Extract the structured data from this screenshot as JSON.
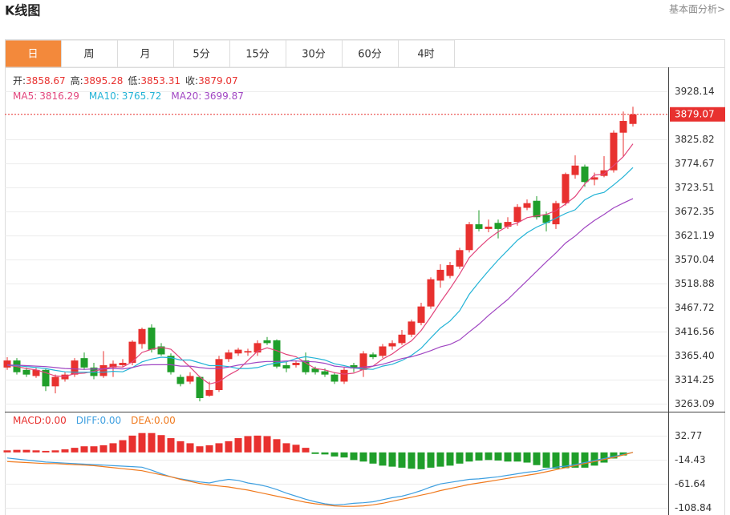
{
  "header": {
    "title": "K线图",
    "link": "基本面分析>"
  },
  "tabs": [
    "日",
    "周",
    "月",
    "5分",
    "15分",
    "30分",
    "60分",
    "4时"
  ],
  "active_tab": 0,
  "chart_data": [
    {
      "type": "candlestick",
      "ohlc_labels": [
        "开:",
        "高:",
        "低:",
        "收:"
      ],
      "up_color": "#e8312f",
      "down_color": "#1f9e2a",
      "open": [
        3340,
        3355,
        3335,
        3322,
        3335,
        3300,
        3315,
        3325,
        3360,
        3340,
        3322,
        3340,
        3345,
        3350,
        3390,
        3425,
        3385,
        3365,
        3320,
        3310,
        3320,
        3280,
        3292,
        3358,
        3370,
        3372,
        3372,
        3398,
        3398,
        3345,
        3345,
        3355,
        3338,
        3332,
        3325,
        3310,
        3345,
        3335,
        3368,
        3365,
        3385,
        3392,
        3410,
        3435,
        3470,
        3525,
        3535,
        3555,
        3590,
        3645,
        3635,
        3648,
        3640,
        3650,
        3680,
        3695,
        3665,
        3645,
        3690,
        3750,
        3768,
        3740,
        3748,
        3760,
        3840,
        3858.67
      ],
      "high": [
        3362,
        3360,
        3340,
        3340,
        3338,
        3325,
        3330,
        3360,
        3372,
        3350,
        3375,
        3355,
        3358,
        3398,
        3425,
        3432,
        3392,
        3370,
        3325,
        3330,
        3322,
        3310,
        3365,
        3378,
        3382,
        3380,
        3398,
        3405,
        3400,
        3352,
        3355,
        3372,
        3342,
        3338,
        3330,
        3340,
        3350,
        3375,
        3372,
        3390,
        3398,
        3420,
        3442,
        3478,
        3532,
        3560,
        3565,
        3595,
        3650,
        3675,
        3655,
        3655,
        3660,
        3688,
        3698,
        3705,
        3672,
        3695,
        3755,
        3792,
        3772,
        3755,
        3790,
        3845,
        3885,
        3895.28
      ],
      "low": [
        3335,
        3325,
        3320,
        3318,
        3290,
        3285,
        3310,
        3320,
        3335,
        3315,
        3318,
        3320,
        3340,
        3345,
        3380,
        3372,
        3365,
        3325,
        3300,
        3305,
        3268,
        3278,
        3288,
        3352,
        3365,
        3365,
        3365,
        3388,
        3338,
        3330,
        3340,
        3325,
        3325,
        3320,
        3305,
        3305,
        3330,
        3320,
        3358,
        3360,
        3378,
        3388,
        3405,
        3430,
        3465,
        3510,
        3530,
        3550,
        3585,
        3630,
        3628,
        3615,
        3635,
        3642,
        3675,
        3655,
        3630,
        3635,
        3685,
        3742,
        3725,
        3728,
        3745,
        3755,
        3790,
        3853.31
      ],
      "close": [
        3355,
        3330,
        3325,
        3335,
        3300,
        3320,
        3325,
        3355,
        3340,
        3322,
        3345,
        3348,
        3350,
        3395,
        3422,
        3378,
        3368,
        3330,
        3305,
        3322,
        3275,
        3292,
        3358,
        3372,
        3378,
        3375,
        3392,
        3392,
        3342,
        3338,
        3350,
        3330,
        3330,
        3325,
        3310,
        3335,
        3338,
        3370,
        3362,
        3385,
        3392,
        3410,
        3438,
        3470,
        3528,
        3548,
        3558,
        3590,
        3645,
        3635,
        3640,
        3635,
        3650,
        3682,
        3690,
        3660,
        3648,
        3690,
        3752,
        3770,
        3735,
        3745,
        3760,
        3840,
        3865,
        3879.07
      ],
      "series": [
        {
          "name": "MA5:",
          "color": "#e2457c",
          "values": [
            3345,
            3342,
            3338,
            3335,
            3329,
            3322,
            3321,
            3327,
            3328,
            3332,
            3337,
            3342,
            3341,
            3352,
            3372,
            3379,
            3383,
            3379,
            3360,
            3341,
            3320,
            3305,
            3310,
            3324,
            3335,
            3355,
            3375,
            3382,
            3376,
            3368,
            3363,
            3350,
            3338,
            3335,
            3329,
            3326,
            3328,
            3336,
            3343,
            3358,
            3369,
            3384,
            3397,
            3419,
            3448,
            3479,
            3508,
            3539,
            3574,
            3595,
            3614,
            3629,
            3641,
            3648,
            3659,
            3663,
            3666,
            3674,
            3688,
            3704,
            3731,
            3750,
            3752,
            3770,
            3789,
            3816.29
          ]
        },
        {
          "name": "MA10:",
          "color": "#22b3d6",
          "values": [
            3345,
            3344,
            3342,
            3340,
            3338,
            3334,
            3331,
            3330,
            3330,
            3330,
            3330,
            3332,
            3331,
            3340,
            3352,
            3358,
            3362,
            3361,
            3356,
            3356,
            3350,
            3344,
            3344,
            3342,
            3338,
            3338,
            3340,
            3346,
            3350,
            3352,
            3359,
            3363,
            3360,
            3356,
            3348,
            3344,
            3339,
            3337,
            3336,
            3343,
            3347,
            3355,
            3366,
            3381,
            3403,
            3424,
            3439,
            3461,
            3496,
            3522,
            3546,
            3569,
            3590,
            3611,
            3627,
            3639,
            3648,
            3658,
            3668,
            3676,
            3697,
            3708,
            3713,
            3729,
            3746,
            3765.72
          ]
        },
        {
          "name": "MA20:",
          "color": "#a046c2",
          "values": [
            3345,
            3345,
            3344,
            3343,
            3342,
            3340,
            3338,
            3337,
            3336,
            3337,
            3337,
            3338,
            3337,
            3340,
            3345,
            3346,
            3346,
            3346,
            3343,
            3343,
            3340,
            3338,
            3338,
            3341,
            3345,
            3348,
            3351,
            3353,
            3353,
            3354,
            3354,
            3353,
            3352,
            3349,
            3343,
            3341,
            3339,
            3341,
            3343,
            3347,
            3353,
            3359,
            3363,
            3369,
            3376,
            3384,
            3389,
            3399,
            3416,
            3432,
            3451,
            3468,
            3485,
            3505,
            3525,
            3545,
            3565,
            3584,
            3605,
            3620,
            3638,
            3653,
            3666,
            3680,
            3690,
            3699.87
          ]
        }
      ],
      "ylim": [
        3246.0,
        3979.3
      ],
      "yticks": [
        3263.09,
        3314.25,
        {
          "value": 3365.4,
          "label": "3365.40"
        },
        3416.56,
        3467.72,
        3518.88,
        3570.04,
        3621.19,
        3672.35,
        3723.51,
        3774.67,
        3825.82,
        3928.14
      ],
      "grid": true
    },
    {
      "type": "macd",
      "up_color": "#e8312f",
      "down_color": "#1f9e2a",
      "histogram": {
        "name": "MACD:",
        "color": "#e8312f",
        "value_label": "0.00",
        "values": [
          4,
          5,
          5,
          4,
          3,
          4,
          6,
          9,
          12,
          12,
          14,
          18,
          24,
          33,
          38,
          38,
          34,
          28,
          22,
          18,
          12,
          14,
          18,
          22,
          28,
          32,
          33,
          32,
          26,
          18,
          15,
          9,
          -3,
          -4,
          -8,
          -10,
          -15,
          -18,
          -22,
          -26,
          -28,
          -30,
          -32,
          -33,
          -30,
          -28,
          -26,
          -22,
          -18,
          -16,
          -15,
          -16,
          -18,
          -18,
          -20,
          -25,
          -30,
          -32,
          -31,
          -30,
          -30,
          -26,
          -20,
          -12,
          -6,
          0
        ]
      },
      "series": [
        {
          "name": "DIFF:",
          "color": "#3e9fe0",
          "value_label": "0.00",
          "values": [
            -11,
            -13,
            -15,
            -17,
            -19,
            -20,
            -21,
            -22,
            -23,
            -24,
            -25,
            -26,
            -27,
            -28,
            -29,
            -35,
            -42,
            -48,
            -52,
            -55,
            -58,
            -60,
            -56,
            -53,
            -55,
            -60,
            -63,
            -67,
            -73,
            -80,
            -86,
            -92,
            -97,
            -101,
            -103,
            -102,
            -100,
            -99,
            -97,
            -93,
            -89,
            -86,
            -81,
            -75,
            -68,
            -62,
            -59,
            -56,
            -53,
            -52,
            -50,
            -48,
            -45,
            -42,
            -39,
            -37,
            -33,
            -29,
            -27,
            -24,
            -20,
            -16,
            -12,
            -8,
            -4,
            0
          ]
        },
        {
          "name": "DEA:",
          "color": "#f07a1e",
          "value_label": "0.00",
          "values": [
            -18,
            -19,
            -20,
            -21,
            -22,
            -22,
            -23,
            -24,
            -25,
            -26,
            -28,
            -30,
            -32,
            -34,
            -36,
            -40,
            -44,
            -48,
            -53,
            -57,
            -61,
            -64,
            -66,
            -68,
            -71,
            -74,
            -78,
            -82,
            -86,
            -90,
            -94,
            -98,
            -101,
            -103,
            -105,
            -106,
            -106,
            -105,
            -103,
            -100,
            -96,
            -92,
            -88,
            -84,
            -80,
            -75,
            -71,
            -67,
            -63,
            -60,
            -57,
            -54,
            -51,
            -48,
            -45,
            -42,
            -38,
            -34,
            -30,
            -26,
            -22,
            -18,
            -14,
            -10,
            -5,
            0
          ]
        }
      ],
      "ylim": [
        -123.0,
        80.0
      ],
      "yticks": [
        -108.84,
        -61.64,
        -14.43,
        32.77
      ]
    }
  ]
}
